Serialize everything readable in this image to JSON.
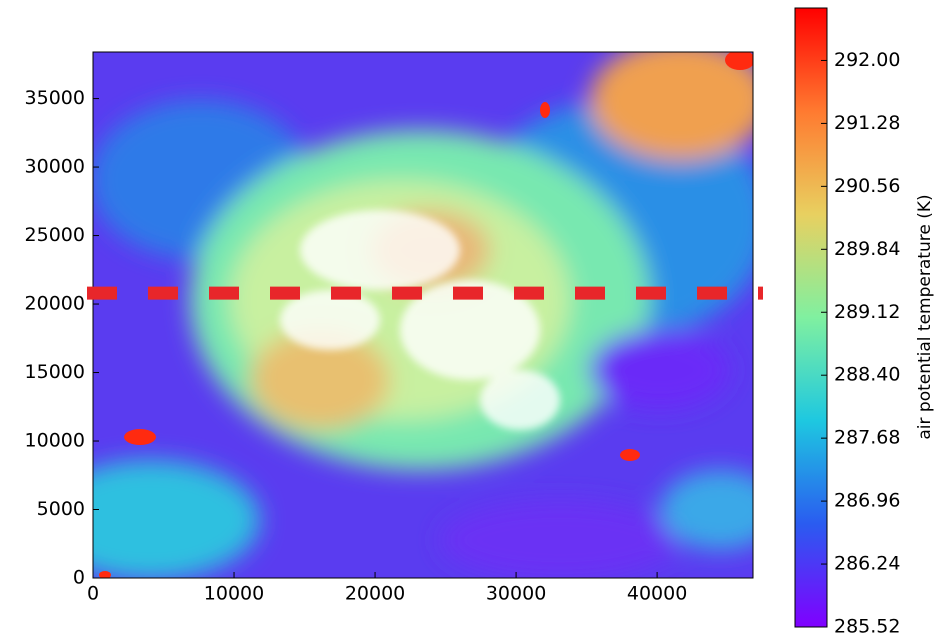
{
  "chart_data": {
    "type": "heatmap",
    "xlim": [
      0,
      46800
    ],
    "ylim": [
      0,
      38400
    ],
    "xticks": [
      0,
      10000,
      20000,
      30000,
      40000
    ],
    "yticks": [
      0,
      5000,
      10000,
      15000,
      20000,
      25000,
      30000,
      35000
    ],
    "colorbar_label": "air potential temperature (K)",
    "clim": [
      285.52,
      292.6
    ],
    "cticks": [
      285.52,
      286.24,
      286.96,
      287.68,
      {
        "value": 288.4,
        "label": "288.40"
      },
      289.12,
      289.84,
      290.56,
      291.28,
      {
        "value": 292,
        "label": "292.00"
      }
    ],
    "colormap": [
      "#8000ff",
      "#2a5cf0",
      "#1ec8e0",
      "#80f0a0",
      "#e8d060",
      "#ff7a30",
      "#ff0000"
    ],
    "hline": 20800,
    "hline_color": "#e8262a"
  }
}
